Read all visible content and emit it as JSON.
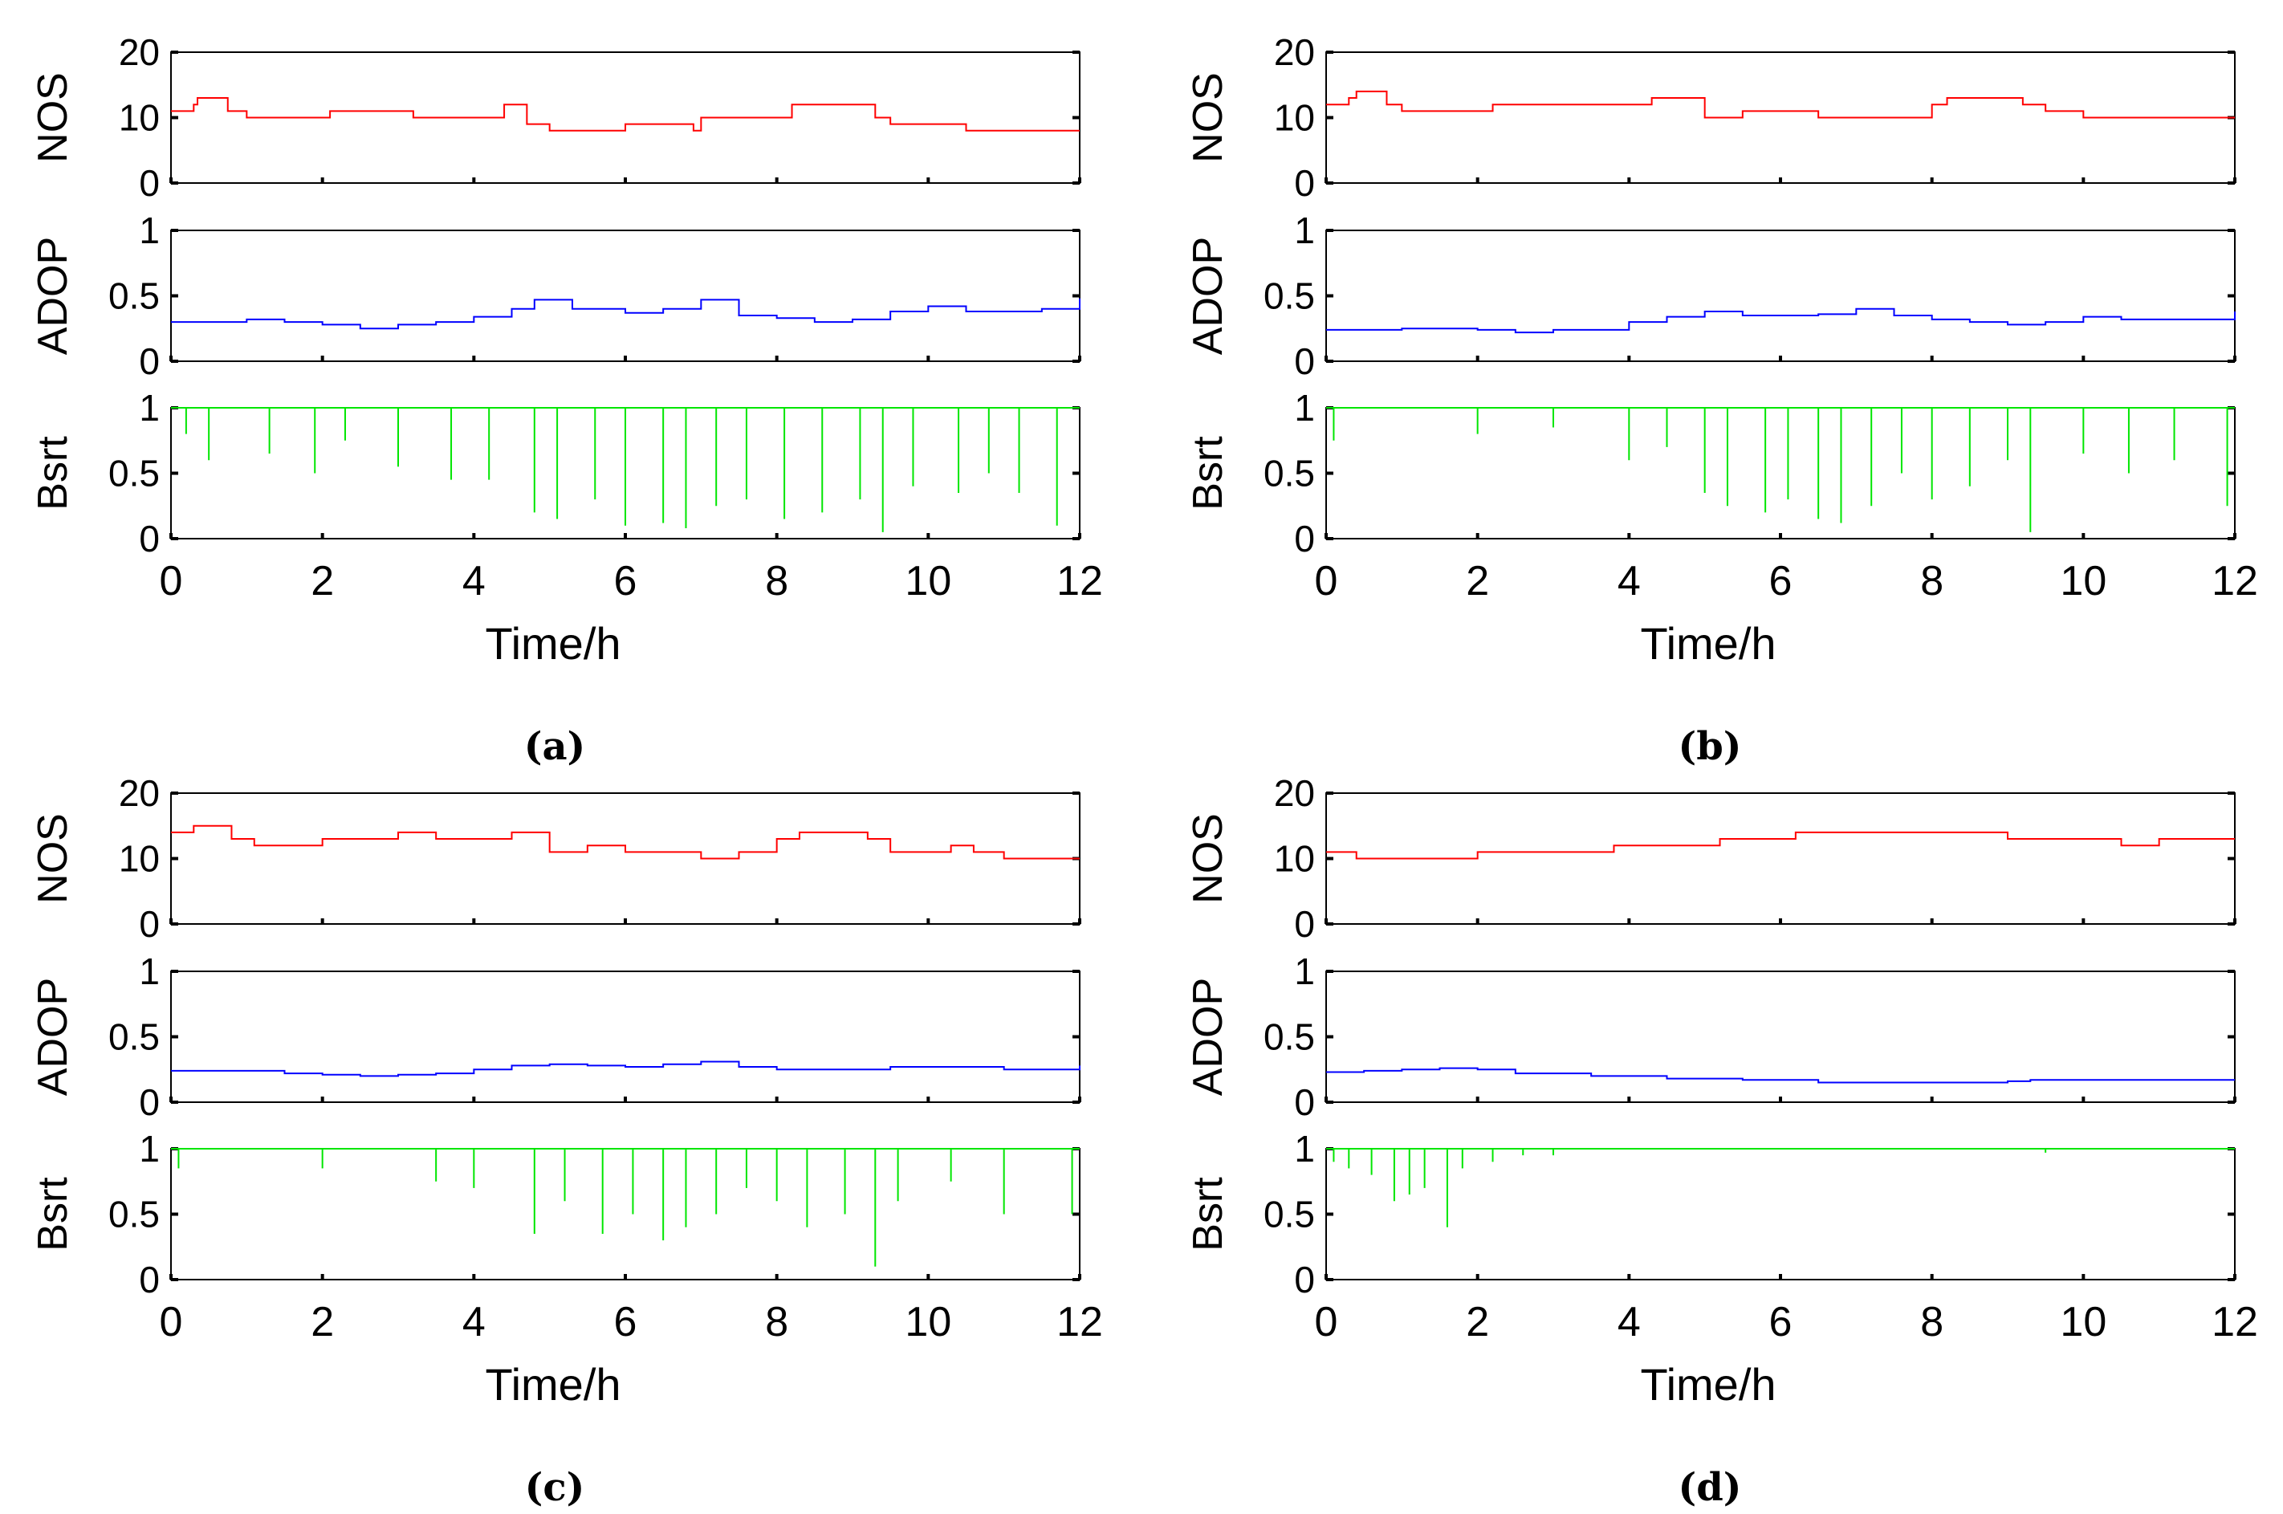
{
  "colors": {
    "nos": "#ff0000",
    "adop": "#0000ff",
    "bsrt": "#00e600",
    "axis": "#000000"
  },
  "x_axis": {
    "label": "Time/h",
    "ticks": [
      "0",
      "2",
      "4",
      "6",
      "8",
      "10",
      "12"
    ],
    "xlim": [
      0,
      12
    ]
  },
  "subplot_meta": {
    "nos": {
      "ylabel": "NOS",
      "ticks": [
        "0",
        "10",
        "20"
      ],
      "ylim": [
        0,
        20
      ]
    },
    "adop": {
      "ylabel": "ADOP",
      "ticks": [
        "0",
        "0.5",
        "1"
      ],
      "ylim": [
        0,
        1
      ]
    },
    "bsrt": {
      "ylabel": "Bsrt",
      "ticks": [
        "0",
        "0.5",
        "1"
      ],
      "ylim": [
        0,
        1
      ]
    }
  },
  "chart_data": [
    {
      "panel": "(a)",
      "type": "line",
      "nos": {
        "x": [
          0,
          0.3,
          0.35,
          0.7,
          0.75,
          1,
          2,
          2.1,
          3,
          3.2,
          4,
          4.4,
          4.5,
          4.7,
          5,
          6,
          6.5,
          6.9,
          7,
          8,
          8.2,
          8.7,
          9.3,
          9.5,
          10,
          10.5,
          12
        ],
        "y": [
          11,
          12,
          13,
          13,
          11,
          10,
          10,
          11,
          11,
          10,
          10,
          12,
          12,
          9,
          8,
          9,
          9,
          8,
          10,
          10,
          12,
          12,
          10,
          9,
          9,
          8,
          8
        ]
      },
      "adop": {
        "x": [
          0,
          1,
          1.5,
          2,
          2.5,
          3,
          3.5,
          4,
          4.5,
          4.8,
          5.3,
          6,
          6.5,
          7,
          7.5,
          8,
          8.5,
          9,
          9.5,
          10,
          10.5,
          11,
          11.5,
          12
        ],
        "y": [
          0.3,
          0.32,
          0.3,
          0.28,
          0.25,
          0.28,
          0.3,
          0.34,
          0.4,
          0.47,
          0.4,
          0.37,
          0.4,
          0.47,
          0.35,
          0.33,
          0.3,
          0.32,
          0.38,
          0.42,
          0.38,
          0.38,
          0.4,
          0.48
        ]
      },
      "bsrt": {
        "x": [
          0.2,
          0.5,
          1.3,
          1.9,
          2.3,
          3,
          3.7,
          4.2,
          4.8,
          5.1,
          5.6,
          6,
          6.5,
          6.8,
          7.2,
          7.6,
          8.1,
          8.6,
          9.1,
          9.4,
          9.8,
          10.4,
          10.8,
          11.2,
          11.7
        ],
        "y": [
          0.8,
          0.6,
          0.65,
          0.5,
          0.75,
          0.55,
          0.45,
          0.45,
          0.2,
          0.15,
          0.3,
          0.1,
          0.12,
          0.08,
          0.25,
          0.3,
          0.15,
          0.2,
          0.3,
          0.05,
          0.4,
          0.35,
          0.5,
          0.35,
          0.1
        ]
      }
    },
    {
      "panel": "(b)",
      "type": "line",
      "nos": {
        "x": [
          0,
          0.3,
          0.4,
          0.7,
          0.8,
          1,
          1.5,
          2.2,
          3,
          4,
          4.3,
          4.6,
          5,
          5.5,
          5.8,
          6.5,
          7,
          8,
          8.2,
          8.8,
          9.2,
          9.5,
          10,
          11,
          12
        ],
        "y": [
          12,
          13,
          14,
          14,
          12,
          11,
          11,
          12,
          12,
          12,
          13,
          13,
          10,
          11,
          11,
          10,
          10,
          12,
          13,
          13,
          12,
          11,
          10,
          10,
          10
        ]
      },
      "adop": {
        "x": [
          0,
          1,
          2,
          2.5,
          3,
          4,
          4.5,
          5,
          5.5,
          6,
          6.5,
          7,
          7.5,
          8,
          8.5,
          9,
          9.5,
          10,
          10.5,
          11,
          11.5,
          12
        ],
        "y": [
          0.24,
          0.25,
          0.24,
          0.22,
          0.24,
          0.3,
          0.34,
          0.38,
          0.35,
          0.35,
          0.36,
          0.4,
          0.35,
          0.32,
          0.3,
          0.28,
          0.3,
          0.34,
          0.32,
          0.32,
          0.32,
          0.38
        ]
      },
      "bsrt": {
        "x": [
          0.1,
          2,
          3,
          4,
          4.5,
          5,
          5.3,
          5.8,
          6.1,
          6.5,
          6.8,
          7.2,
          7.6,
          8,
          8.5,
          9,
          9.3,
          10,
          10.6,
          11.2,
          11.9
        ],
        "y": [
          0.75,
          0.8,
          0.85,
          0.6,
          0.7,
          0.35,
          0.25,
          0.2,
          0.3,
          0.15,
          0.12,
          0.25,
          0.5,
          0.3,
          0.4,
          0.6,
          0.05,
          0.65,
          0.5,
          0.6,
          0.25
        ]
      }
    },
    {
      "panel": "(c)",
      "type": "line",
      "nos": {
        "x": [
          0,
          0.25,
          0.3,
          0.7,
          0.8,
          1.1,
          1.5,
          2,
          2.5,
          3,
          3.5,
          4,
          4.5,
          5,
          5.5,
          6,
          6.5,
          7,
          7.5,
          8,
          8.3,
          8.6,
          9.2,
          9.5,
          10,
          10.3,
          10.6,
          11,
          12
        ],
        "y": [
          14,
          14,
          15,
          15,
          13,
          12,
          12,
          13,
          13,
          14,
          13,
          13,
          14,
          11,
          12,
          11,
          11,
          10,
          11,
          13,
          14,
          14,
          13,
          11,
          11,
          12,
          11,
          10,
          10
        ]
      },
      "adop": {
        "x": [
          0,
          1,
          1.5,
          2,
          2.5,
          3,
          3.5,
          4,
          4.5,
          5,
          5.5,
          6,
          6.5,
          7,
          7.5,
          8,
          8.5,
          9,
          9.5,
          10,
          10.5,
          11,
          11.5,
          12
        ],
        "y": [
          0.24,
          0.24,
          0.22,
          0.21,
          0.2,
          0.21,
          0.22,
          0.25,
          0.28,
          0.29,
          0.28,
          0.27,
          0.29,
          0.31,
          0.27,
          0.25,
          0.25,
          0.25,
          0.27,
          0.27,
          0.27,
          0.25,
          0.25,
          0.28
        ]
      },
      "bsrt": {
        "x": [
          0.1,
          2,
          3.5,
          4,
          4.8,
          5.2,
          5.7,
          6.1,
          6.5,
          6.8,
          7.2,
          7.6,
          8,
          8.4,
          8.9,
          9.3,
          9.6,
          10.3,
          11,
          11.9
        ],
        "y": [
          0.85,
          0.85,
          0.75,
          0.7,
          0.35,
          0.6,
          0.35,
          0.5,
          0.3,
          0.4,
          0.5,
          0.7,
          0.6,
          0.4,
          0.5,
          0.1,
          0.6,
          0.75,
          0.5,
          0.5
        ]
      }
    },
    {
      "panel": "(d)",
      "type": "line",
      "nos": {
        "x": [
          0,
          0.4,
          0.8,
          1.5,
          2,
          2.5,
          3.7,
          3.8,
          5,
          5.2,
          6,
          6.2,
          7.9,
          8,
          9,
          9.3,
          10,
          10.5,
          11,
          11.5,
          12
        ],
        "y": [
          11,
          10,
          10,
          10,
          11,
          11,
          11,
          12,
          12,
          13,
          13,
          14,
          14,
          14,
          13,
          13,
          13,
          12,
          13,
          13,
          13
        ]
      },
      "adop": {
        "x": [
          0,
          0.5,
          1,
          1.5,
          2,
          2.5,
          3.5,
          4.5,
          5.5,
          6.5,
          7,
          7.5,
          8,
          8.5,
          9,
          9.3,
          9.5,
          10,
          10.5,
          11,
          11.5,
          12
        ],
        "y": [
          0.23,
          0.24,
          0.25,
          0.26,
          0.25,
          0.22,
          0.2,
          0.18,
          0.17,
          0.15,
          0.15,
          0.15,
          0.15,
          0.15,
          0.16,
          0.17,
          0.17,
          0.17,
          0.17,
          0.17,
          0.17,
          0.17
        ]
      },
      "bsrt": {
        "x": [
          0.1,
          0.3,
          0.6,
          0.9,
          1.1,
          1.3,
          1.6,
          1.8,
          2.2,
          2.6,
          3,
          9.5
        ],
        "y": [
          0.9,
          0.85,
          0.8,
          0.6,
          0.65,
          0.7,
          0.4,
          0.85,
          0.9,
          0.95,
          0.95,
          0.97
        ]
      }
    }
  ],
  "captions": [
    "(a)",
    "(b)",
    "(c)",
    "(d)"
  ]
}
